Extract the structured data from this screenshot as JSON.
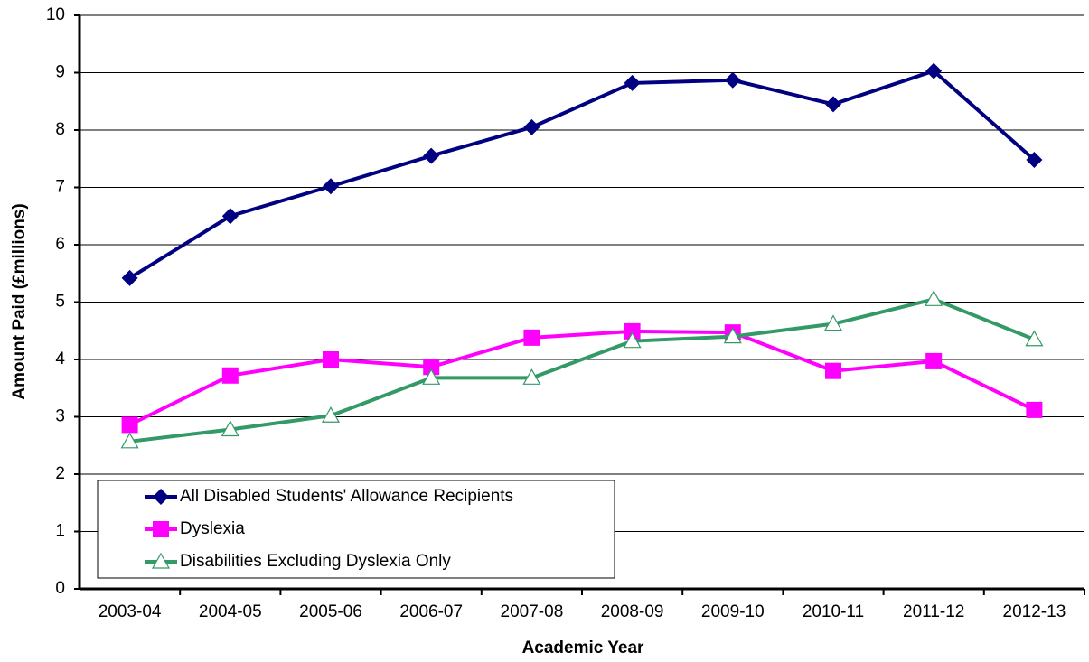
{
  "chart_data": {
    "type": "line",
    "x_label": "Academic Year",
    "y_label": "Amount Paid (£millions)",
    "categories": [
      "2003-04",
      "2004-05",
      "2005-06",
      "2006-07",
      "2007-08",
      "2008-09",
      "2009-10",
      "2010-11",
      "2011-12",
      "2012-13"
    ],
    "series": [
      {
        "name": "All Disabled Students' Allowance Recipients",
        "color": "#000080",
        "marker": "diamond",
        "values": [
          5.42,
          6.5,
          7.02,
          7.55,
          8.05,
          8.82,
          8.87,
          8.45,
          9.03,
          7.48
        ]
      },
      {
        "name": "Dyslexia",
        "color": "#ff00ff",
        "marker": "square",
        "values": [
          2.86,
          3.72,
          4.0,
          3.87,
          4.38,
          4.49,
          4.47,
          3.8,
          3.97,
          3.12
        ]
      },
      {
        "name": "Disabilities Excluding Dyslexia Only",
        "color": "#339966",
        "marker": "triangle",
        "values": [
          2.57,
          2.78,
          3.02,
          3.68,
          3.68,
          4.32,
          4.4,
          4.62,
          5.05,
          4.35
        ]
      }
    ],
    "ylim": [
      0,
      10
    ],
    "yticks": [
      0,
      1,
      2,
      3,
      4,
      5,
      6,
      7,
      8,
      9,
      10
    ],
    "grid": true,
    "legend": "lower left"
  }
}
